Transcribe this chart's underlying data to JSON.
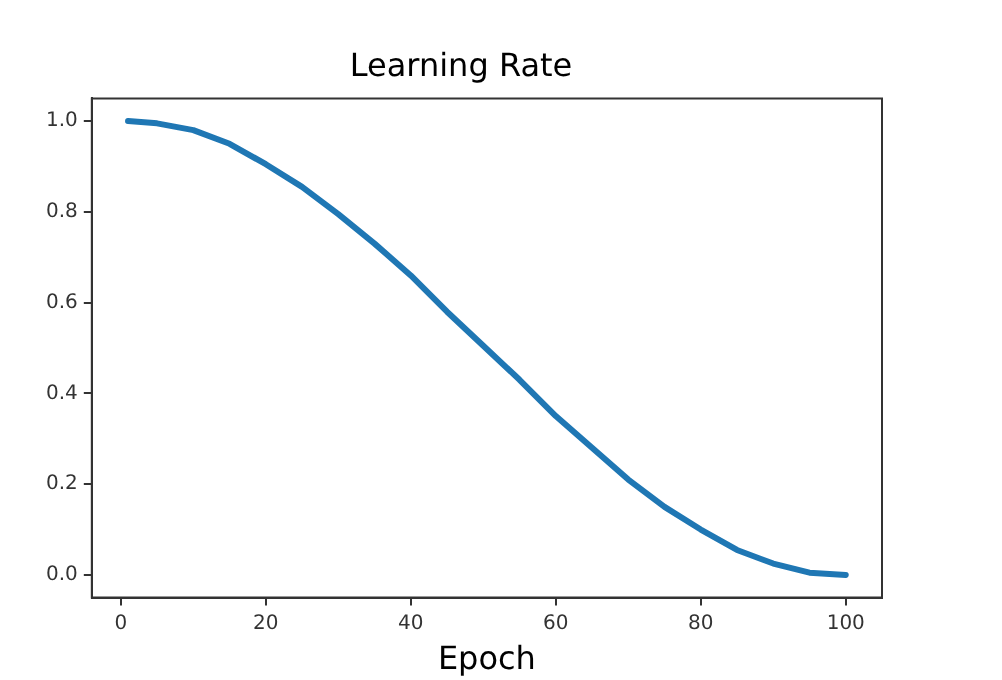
{
  "chart_data": {
    "type": "line",
    "title": "Learning Rate",
    "xlabel": "Epoch",
    "x": [
      1,
      5,
      10,
      15,
      20,
      25,
      30,
      35,
      40,
      45,
      50,
      55,
      60,
      65,
      70,
      75,
      80,
      85,
      90,
      95,
      100
    ],
    "series": [
      {
        "color": "#1f77b4",
        "values": [
          1.0,
          0.995,
          0.98,
          0.95,
          0.905,
          0.855,
          0.795,
          0.73,
          0.66,
          0.58,
          0.505,
          0.43,
          0.35,
          0.28,
          0.21,
          0.15,
          0.1,
          0.055,
          0.025,
          0.005,
          0.0
        ]
      }
    ],
    "xlim": [
      -4,
      105
    ],
    "xticks": [
      0,
      20,
      40,
      60,
      80,
      100
    ],
    "ylim": [
      -0.05,
      1.05
    ],
    "yticks": [
      {
        "value": 0,
        "label": "0.0"
      },
      {
        "value": 0.2,
        "label": "0.2"
      },
      {
        "value": 0.4,
        "label": "0.4"
      },
      {
        "value": 0.6,
        "label": "0.6"
      },
      {
        "value": 0.8,
        "label": "0.8"
      },
      {
        "value": 1,
        "label": "1.0"
      }
    ],
    "legend": false,
    "grid": false
  }
}
